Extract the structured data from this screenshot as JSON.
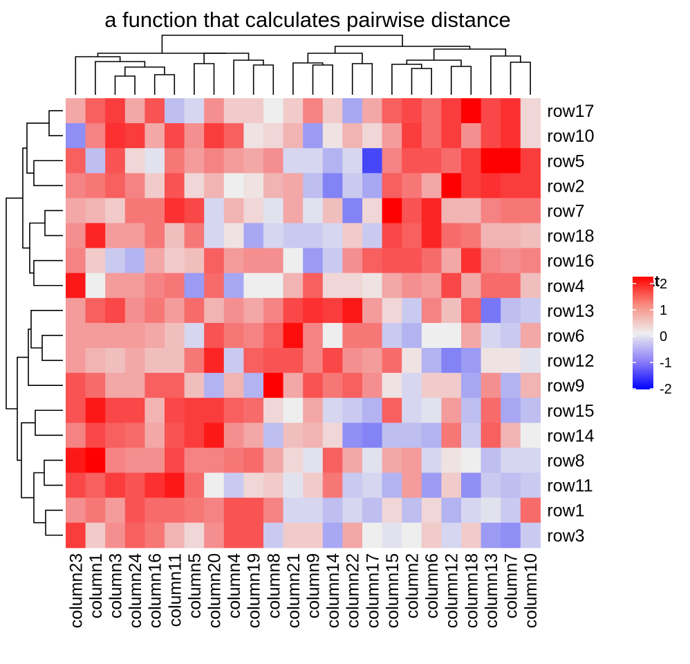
{
  "chart_data": {
    "type": "heatmap",
    "title": "a function that calculates pairwise distance",
    "rows": [
      "row17",
      "row10",
      "row5",
      "row2",
      "row7",
      "row18",
      "row16",
      "row4",
      "row13",
      "row6",
      "row12",
      "row9",
      "row15",
      "row14",
      "row8",
      "row11",
      "row1",
      "row3"
    ],
    "columns": [
      "column23",
      "column1",
      "column3",
      "column24",
      "column16",
      "column11",
      "column5",
      "column20",
      "column4",
      "column19",
      "column8",
      "column21",
      "column9",
      "column14",
      "column22",
      "column17",
      "column15",
      "column2",
      "column6",
      "column12",
      "column18",
      "column13",
      "column7",
      "column10"
    ],
    "values": [
      [
        0.6,
        1.2,
        1.5,
        0.6,
        1.3,
        -0.4,
        -0.2,
        0.8,
        0.3,
        0.3,
        0.0,
        0.3,
        0.9,
        0.3,
        -0.6,
        0.6,
        1.2,
        1.4,
        1.1,
        1.5,
        2.0,
        1.4,
        1.6,
        0.2
      ],
      [
        -0.8,
        0.9,
        1.6,
        1.5,
        0.6,
        1.4,
        0.8,
        1.5,
        1.2,
        0.1,
        0.2,
        0.5,
        -0.7,
        0.1,
        0.5,
        0.2,
        0.7,
        1.5,
        1.1,
        1.5,
        0.8,
        1.4,
        1.6,
        0.2
      ],
      [
        1.2,
        -0.4,
        1.3,
        0.2,
        -0.1,
        1.0,
        0.7,
        0.9,
        0.7,
        0.6,
        0.8,
        -0.2,
        -0.2,
        -0.5,
        -0.2,
        -1.4,
        0.9,
        1.3,
        1.3,
        1.1,
        1.5,
        2.0,
        2.0,
        1.5
      ],
      [
        0.9,
        1.0,
        1.2,
        0.9,
        0.3,
        1.3,
        0.2,
        0.5,
        0.0,
        0.1,
        0.5,
        0.6,
        -0.4,
        -0.9,
        -0.3,
        -0.6,
        1.2,
        1.0,
        0.6,
        2.0,
        1.5,
        1.6,
        1.5,
        1.5
      ],
      [
        0.6,
        0.5,
        0.3,
        1.0,
        1.0,
        1.6,
        1.4,
        -0.2,
        0.5,
        0.2,
        -0.1,
        0.6,
        -0.1,
        0.4,
        -0.9,
        0.2,
        2.0,
        1.3,
        1.7,
        0.5,
        0.5,
        0.9,
        1.0,
        1.0
      ],
      [
        0.8,
        1.7,
        0.7,
        0.7,
        1.0,
        0.4,
        1.0,
        -0.2,
        0.1,
        -0.6,
        -0.2,
        -0.3,
        -0.3,
        -0.2,
        0.3,
        -0.3,
        1.4,
        1.2,
        1.7,
        1.1,
        1.0,
        0.5,
        0.5,
        0.4
      ],
      [
        0.9,
        0.3,
        -0.3,
        -0.5,
        0.6,
        0.3,
        0.4,
        1.2,
        0.7,
        0.8,
        0.8,
        0.0,
        -0.7,
        -0.3,
        0.8,
        1.2,
        1.3,
        1.3,
        1.1,
        0.6,
        1.6,
        0.9,
        0.8,
        0.9
      ],
      [
        1.8,
        0.0,
        0.7,
        0.7,
        0.9,
        1.0,
        -0.7,
        1.1,
        -0.6,
        0.0,
        0.0,
        0.5,
        1.2,
        0.2,
        0.2,
        0.1,
        0.6,
        0.8,
        0.7,
        1.4,
        0.6,
        1.1,
        1.1,
        0.4
      ],
      [
        0.7,
        1.2,
        1.4,
        0.8,
        1.0,
        0.7,
        1.1,
        0.5,
        0.8,
        0.6,
        0.9,
        1.4,
        1.6,
        1.5,
        1.8,
        0.7,
        0.2,
        -0.3,
        0.9,
        0.4,
        1.2,
        -1.0,
        -0.4,
        -0.3
      ],
      [
        0.7,
        0.7,
        0.7,
        0.7,
        0.6,
        0.4,
        -0.2,
        1.3,
        1.0,
        0.9,
        1.2,
        1.9,
        0.9,
        0.0,
        1.0,
        1.0,
        -0.3,
        -0.5,
        0.0,
        0.0,
        0.6,
        -0.2,
        -0.3,
        0.6
      ],
      [
        0.7,
        0.5,
        0.4,
        0.6,
        0.4,
        0.4,
        1.0,
        1.7,
        -0.3,
        1.2,
        1.3,
        1.3,
        0.9,
        1.4,
        0.8,
        0.7,
        1.1,
        0.1,
        -0.5,
        -0.9,
        -0.7,
        0.1,
        0.1,
        -0.1
      ],
      [
        1.3,
        1.1,
        0.6,
        0.6,
        1.2,
        1.2,
        0.4,
        -0.5,
        0.5,
        -0.5,
        2.0,
        0.6,
        1.3,
        1.0,
        1.2,
        0.8,
        0.1,
        -0.2,
        0.3,
        0.3,
        -0.6,
        0.8,
        -0.5,
        0.5
      ],
      [
        1.3,
        1.8,
        1.4,
        1.4,
        0.5,
        1.4,
        1.5,
        1.5,
        1.2,
        1.1,
        0.2,
        0.0,
        0.6,
        -0.2,
        -0.3,
        -0.5,
        1.2,
        -0.2,
        -0.1,
        0.7,
        -0.4,
        1.1,
        -0.6,
        -0.4
      ],
      [
        0.9,
        1.4,
        1.2,
        1.1,
        0.6,
        1.3,
        1.5,
        1.8,
        0.8,
        0.6,
        -0.4,
        0.4,
        0.5,
        0.2,
        -0.8,
        -0.9,
        -0.4,
        -0.4,
        -0.5,
        1.0,
        -0.3,
        1.2,
        0.5,
        0.0
      ],
      [
        1.8,
        2.0,
        0.9,
        0.8,
        0.8,
        1.4,
        0.9,
        0.9,
        1.0,
        1.1,
        0.6,
        0.2,
        -0.1,
        1.2,
        0.6,
        -0.1,
        0.6,
        0.7,
        -0.2,
        0.1,
        0.0,
        -0.4,
        -0.2,
        -0.2
      ],
      [
        1.4,
        1.2,
        1.5,
        1.3,
        1.6,
        1.8,
        1.1,
        0.0,
        -0.3,
        0.2,
        0.3,
        -0.1,
        0.3,
        1.0,
        -0.3,
        -0.2,
        -0.5,
        0.7,
        -0.7,
        0.3,
        -0.8,
        -0.3,
        -0.4,
        -0.3
      ],
      [
        0.8,
        1.0,
        0.7,
        1.3,
        1.1,
        1.1,
        1.0,
        0.9,
        1.3,
        1.3,
        0.9,
        -0.2,
        -0.2,
        -0.4,
        -0.2,
        -0.4,
        0.2,
        -0.4,
        0.2,
        -0.5,
        -0.2,
        -0.1,
        -0.3,
        1.1
      ],
      [
        1.5,
        0.3,
        0.8,
        1.2,
        1.0,
        0.5,
        0.2,
        0.8,
        1.3,
        1.3,
        -0.3,
        0.3,
        0.3,
        -0.6,
        0.6,
        0.0,
        -0.1,
        0.0,
        0.3,
        -0.2,
        0.3,
        -0.7,
        -0.8,
        -0.3
      ]
    ],
    "color_scale": {
      "min": -2,
      "mid": 0,
      "max": 2,
      "low_color": "#0000ff",
      "mid_color": "#eeeeee",
      "high_color": "#ff0000"
    },
    "legend": {
      "title": "mat",
      "ticks": [
        2,
        1,
        0,
        -1,
        -2
      ],
      "tick_labels": [
        "2",
        "1",
        "0",
        "-1",
        "-2"
      ],
      "position": "right"
    }
  }
}
